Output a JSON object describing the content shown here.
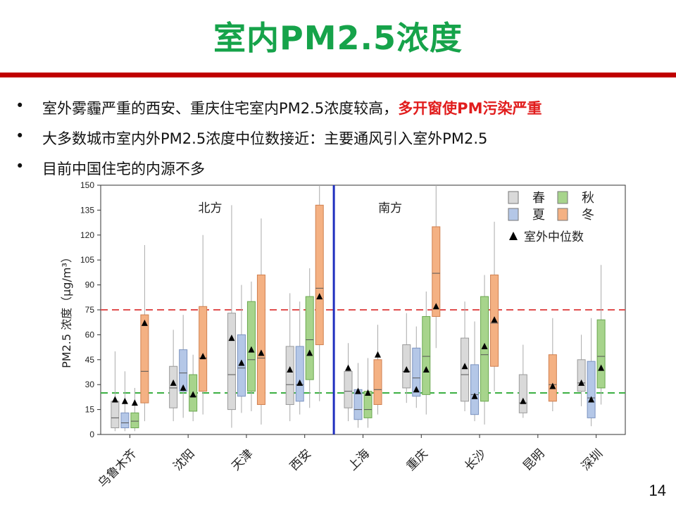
{
  "slide": {
    "title": "室内PM2.5浓度",
    "page_number": "14",
    "bullets": [
      {
        "text": "室外雾霾严重的西安、重庆住宅室内PM2.5浓度较高，",
        "highlight": "多开窗使PM污染严重"
      },
      {
        "text": "大多数城市室内外PM2.5浓度中位数接近：主要通风引入室外PM2.5",
        "highlight": ""
      },
      {
        "text": "目前中国住宅的内源不多",
        "highlight": ""
      }
    ],
    "bullet_symbol": "•"
  },
  "chart_data": {
    "type": "box",
    "ylabel": "PM2.5 浓度（μg/m³）",
    "ylim": [
      0,
      150
    ],
    "yticks": [
      0,
      15,
      30,
      45,
      60,
      75,
      90,
      105,
      120,
      135,
      150
    ],
    "region_labels": [
      {
        "text": "北方",
        "cities": [
          "乌鲁木齐",
          "沈阳",
          "天津",
          "西安"
        ]
      },
      {
        "text": "南方",
        "cities": [
          "上海",
          "重庆",
          "长沙",
          "昆明",
          "深圳"
        ]
      }
    ],
    "reference_lines": [
      {
        "value": 75,
        "color": "#e05050",
        "style": "dashed"
      },
      {
        "value": 25,
        "color": "#3cb043",
        "style": "dashed"
      }
    ],
    "legend": {
      "placement": "top-right",
      "entries": [
        {
          "label": "春",
          "color": "#d9d9d9"
        },
        {
          "label": "秋",
          "color": "#a7d48c"
        },
        {
          "label": "夏",
          "color": "#b4c7e7"
        },
        {
          "label": "冬",
          "color": "#f4b183"
        },
        {
          "label": "室外中位数",
          "marker": "triangle"
        }
      ]
    },
    "series_colors": {
      "春": "#d9d9d9",
      "夏": "#b4c7e7",
      "秋": "#a7d48c",
      "冬": "#f4b183"
    },
    "series_edges": {
      "春": "#9a9a9a",
      "夏": "#7b93c0",
      "秋": "#6aa84f",
      "冬": "#d08050"
    },
    "cities": [
      {
        "name": "乌鲁木齐",
        "seasons": [
          {
            "season": "春",
            "min": 2,
            "q1": 4,
            "median": 10,
            "q3": 20,
            "max": 50,
            "outdoor": 21
          },
          {
            "season": "夏",
            "min": 2,
            "q1": 4,
            "median": 7,
            "q3": 13,
            "max": 38,
            "outdoor": 20
          },
          {
            "season": "秋",
            "min": 2,
            "q1": 4,
            "median": 8,
            "q3": 13,
            "max": 28,
            "outdoor": 19
          },
          {
            "season": "冬",
            "min": 8,
            "q1": 19,
            "median": 38,
            "q3": 72,
            "max": 114,
            "outdoor": 67
          }
        ]
      },
      {
        "name": "沈阳",
        "seasons": [
          {
            "season": "春",
            "min": 8,
            "q1": 16,
            "median": 28,
            "q3": 41,
            "max": 63,
            "outdoor": 31
          },
          {
            "season": "夏",
            "min": 10,
            "q1": 26,
            "median": 37,
            "q3": 51,
            "max": 72,
            "outdoor": 28
          },
          {
            "season": "秋",
            "min": 8,
            "q1": 14,
            "median": 23,
            "q3": 36,
            "max": 48,
            "outdoor": 24
          },
          {
            "season": "冬",
            "min": 12,
            "q1": 26,
            "median": 46,
            "q3": 77,
            "max": 120,
            "outdoor": 47
          }
        ]
      },
      {
        "name": "天津",
        "seasons": [
          {
            "season": "春",
            "min": 4,
            "q1": 15,
            "median": 36,
            "q3": 73,
            "max": 138,
            "outdoor": 58
          },
          {
            "season": "夏",
            "min": 13,
            "q1": 23,
            "median": 40,
            "q3": 60,
            "max": 90,
            "outdoor": 43
          },
          {
            "season": "秋",
            "min": 14,
            "q1": 26,
            "median": 45,
            "q3": 80,
            "max": 92,
            "outdoor": 51
          },
          {
            "season": "冬",
            "min": 6,
            "q1": 18,
            "median": 46,
            "q3": 96,
            "max": 130,
            "outdoor": 49
          }
        ]
      },
      {
        "name": "西安",
        "seasons": [
          {
            "season": "春",
            "min": 8,
            "q1": 18,
            "median": 30,
            "q3": 53,
            "max": 85,
            "outdoor": 39
          },
          {
            "season": "夏",
            "min": 12,
            "q1": 20,
            "median": 30,
            "q3": 53,
            "max": 80,
            "outdoor": 31
          },
          {
            "season": "秋",
            "min": 16,
            "q1": 33,
            "median": 57,
            "q3": 83,
            "max": 100,
            "outdoor": 49
          },
          {
            "season": "冬",
            "min": 20,
            "q1": 54,
            "median": 88,
            "q3": 138,
            "max": 150,
            "outdoor": 83
          }
        ]
      },
      {
        "name": "上海",
        "seasons": [
          {
            "season": "春",
            "min": 8,
            "q1": 16,
            "median": 26,
            "q3": 38,
            "max": 55,
            "outdoor": 40
          },
          {
            "season": "夏",
            "min": 4,
            "q1": 9,
            "median": 15,
            "q3": 27,
            "max": 43,
            "outdoor": 26
          },
          {
            "season": "秋",
            "min": 4,
            "q1": 10,
            "median": 15,
            "q3": 26,
            "max": 46,
            "outdoor": 25
          },
          {
            "season": "冬",
            "min": 12,
            "q1": 18,
            "median": 27,
            "q3": 45,
            "max": 66,
            "outdoor": 48
          }
        ]
      },
      {
        "name": "重庆",
        "seasons": [
          {
            "season": "春",
            "min": 19,
            "q1": 28,
            "median": 38,
            "q3": 54,
            "max": 73,
            "outdoor": 39
          },
          {
            "season": "夏",
            "min": 16,
            "q1": 23,
            "median": 34,
            "q3": 52,
            "max": 65,
            "outdoor": 27
          },
          {
            "season": "秋",
            "min": 12,
            "q1": 24,
            "median": 47,
            "q3": 71,
            "max": 86,
            "outdoor": 39
          },
          {
            "season": "冬",
            "min": 52,
            "q1": 71,
            "median": 97,
            "q3": 125,
            "max": 150,
            "outdoor": 77
          }
        ]
      },
      {
        "name": "长沙",
        "seasons": [
          {
            "season": "春",
            "min": 14,
            "q1": 20,
            "median": 36,
            "q3": 58,
            "max": 80,
            "outdoor": 41
          },
          {
            "season": "夏",
            "min": 8,
            "q1": 12,
            "median": 24,
            "q3": 42,
            "max": 68,
            "outdoor": 23
          },
          {
            "season": "秋",
            "min": 6,
            "q1": 20,
            "median": 48,
            "q3": 83,
            "max": 96,
            "outdoor": 53
          },
          {
            "season": "冬",
            "min": 26,
            "q1": 41,
            "median": 67,
            "q3": 96,
            "max": 128,
            "outdoor": 69
          }
        ]
      },
      {
        "name": "昆明",
        "seasons": [
          {
            "season": "春",
            "min": 10,
            "q1": 13,
            "median": 19,
            "q3": 36,
            "max": 54,
            "outdoor": 20
          },
          {
            "season": "冬",
            "min": 14,
            "q1": 20,
            "median": 30,
            "q3": 48,
            "max": 70,
            "outdoor": 29
          }
        ]
      },
      {
        "name": "深圳",
        "seasons": [
          {
            "season": "春",
            "min": 17,
            "q1": 26,
            "median": 31,
            "q3": 45,
            "max": 60,
            "outdoor": 31
          },
          {
            "season": "夏",
            "min": 5,
            "q1": 10,
            "median": 22,
            "q3": 44,
            "max": 70,
            "outdoor": 21
          },
          {
            "season": "秋",
            "min": 18,
            "q1": 28,
            "median": 47,
            "q3": 69,
            "max": 102,
            "outdoor": 40
          }
        ]
      }
    ]
  }
}
